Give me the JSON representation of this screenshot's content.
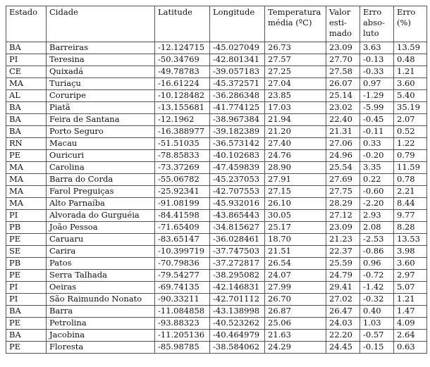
{
  "table": {
    "headers": [
      "Estado",
      "Cidade",
      "Latitude",
      "Longitude",
      "Temperatura\nmédia (ºC)",
      "Valor\nesti-\nmado",
      "Erro\nabso-\nluto",
      "Erro\n(%)"
    ],
    "rows": [
      [
        "BA",
        "Barreiras",
        "-12.124715",
        "-45.027049",
        "26.73",
        "23.09",
        "3.63",
        "13.59"
      ],
      [
        "PI",
        "Teresina",
        "-50.34769",
        "-42.801341",
        "27.57",
        "27.70",
        "-0.13",
        "0.48"
      ],
      [
        "CE",
        "Quixadá",
        "-49.78783",
        "-39.057183",
        "27.25",
        "27.58",
        "-0.33",
        "1.21"
      ],
      [
        "MA",
        "Turiaçu",
        "-16.61224",
        "-45.372571",
        "27.04",
        "26.07",
        "0.97",
        "3.60"
      ],
      [
        "AL",
        "Coruripe",
        "-10.128482",
        "-36.286348",
        "23.85",
        "25.14",
        "-1.29",
        "5.40"
      ],
      [
        "BA",
        "Piatã",
        "-13.155681",
        "-41.774125",
        "17.03",
        "23.02",
        "-5.99",
        "35.19"
      ],
      [
        "BA",
        "Feira de Santana",
        "-12.1962",
        "-38.967384",
        "21.94",
        "22.40",
        "-0.45",
        "2.07"
      ],
      [
        "BA",
        "Porto Seguro",
        "-16.388977",
        "-39.182389",
        "21.20",
        "21.31",
        "-0.11",
        "0.52"
      ],
      [
        "RN",
        "Macau",
        "-51.51035",
        "-36.573142",
        "27.40",
        "27.06",
        "0.33",
        "1.22"
      ],
      [
        "PE",
        "Ouricuri",
        "-78.85833",
        "-40.102683",
        "24.76",
        "24.96",
        "-0.20",
        "0.79"
      ],
      [
        "MA",
        "Carolina",
        "-73.37269",
        "-47.459839",
        "28.90",
        "25.54",
        "3.35",
        "11.59"
      ],
      [
        "MA",
        "Barra do Corda",
        "-55.06782",
        "-45.237053",
        "27.91",
        "27.69",
        "0.22",
        "0.78"
      ],
      [
        "MA",
        "Farol Preguiças",
        "-25.92341",
        "-42.707553",
        "27.15",
        "27.75",
        "-0.60",
        "2.21"
      ],
      [
        "MA",
        "Alto Parnaíba",
        "-91.08199",
        "-45.932016",
        "26.10",
        "28.29",
        "-2.20",
        "8.44"
      ],
      [
        "PI",
        "Alvorada do Gurguéia",
        "-84.41598",
        "-43.865443",
        "30.05",
        "27.12",
        "2.93",
        "9.77"
      ],
      [
        "PB",
        "João Pessoa",
        "-71.65409",
        "-34.815627",
        "25.17",
        "23.09",
        "2.08",
        "8.28"
      ],
      [
        "PE",
        "Caruaru",
        "-83.65147",
        "-36.028461",
        "18.70",
        "21.23",
        "-2.53",
        "13.53"
      ],
      [
        "SE",
        "Carira",
        "-10.399719",
        "-37.747503",
        "21.51",
        "22.37",
        "-0.86",
        "3.98"
      ],
      [
        "PB",
        "Patos",
        "-70.79836",
        "-37.272817",
        "26.54",
        "25.59",
        "0.96",
        "3.60"
      ],
      [
        "PE",
        "Serra Talhada",
        "-79.54277",
        "-38.295082",
        "24.07",
        "24.79",
        "-0.72",
        "2.97"
      ],
      [
        "PI",
        "Oeiras",
        "-69.74135",
        "-42.146831",
        "27.99",
        "29.41",
        "-1.42",
        "5.07"
      ],
      [
        "PI",
        "São Raimundo Nonato",
        "-90.33211",
        "-42.701112",
        "26.70",
        "27.02",
        "-0.32",
        "1.21"
      ],
      [
        "BA",
        "Barra",
        "-11.084858",
        "-43.138998",
        "26.87",
        "26.47",
        "0.40",
        "1.47"
      ],
      [
        "PE",
        "Petrolina",
        "-93.88323",
        "-40.523262",
        "25.06",
        "24.03",
        "1.03",
        "4.09"
      ],
      [
        "BA",
        "Jacobina",
        "-11.205136",
        "-40.464979",
        "21.63",
        "22.20",
        "-0.57",
        "2.64"
      ],
      [
        "PE",
        "Floresta",
        "-85.98785",
        "-38.584062",
        "24.29",
        "24.45",
        "-0.15",
        "0.63"
      ]
    ]
  }
}
